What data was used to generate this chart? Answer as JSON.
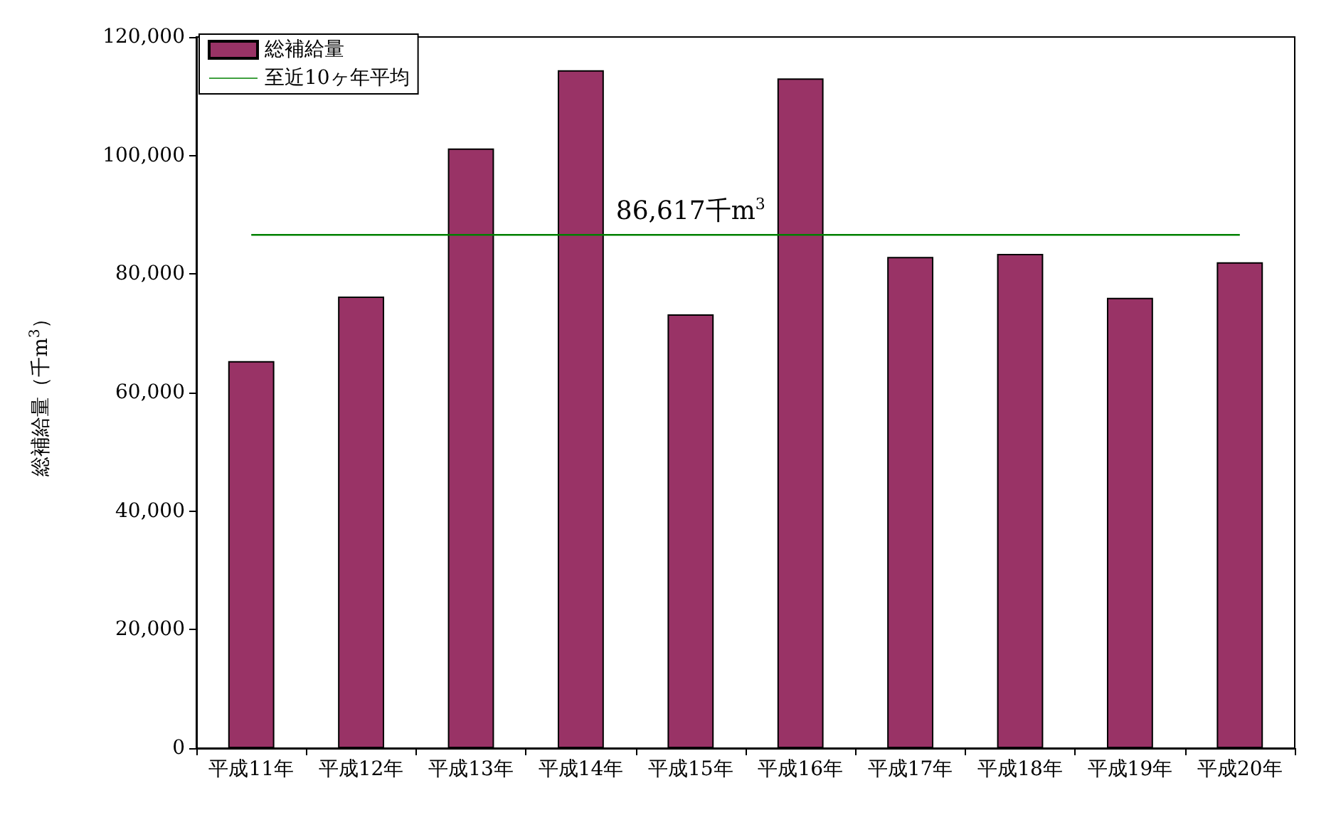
{
  "chart_data": {
    "type": "bar",
    "ylabel": "総補給量（千m$^{3}$）",
    "categories": [
      "平成11年",
      "平成12年",
      "平成13年",
      "平成14年",
      "平成15年",
      "平成16年",
      "平成17年",
      "平成18年",
      "平成19年",
      "平成20年"
    ],
    "series": [
      {
        "name": "総補給量",
        "color": "#993366",
        "values": [
          65300,
          76200,
          101200,
          114400,
          73200,
          113000,
          82900,
          83400,
          76000,
          82000
        ]
      },
      {
        "name": "至近10ヶ年平均",
        "type": "line",
        "color": "#008000",
        "values": [
          86617,
          86617,
          86617,
          86617,
          86617,
          86617,
          86617,
          86617,
          86617,
          86617
        ]
      }
    ],
    "annotations": [
      {
        "text": "86,617千m$^{3}$",
        "x": "平成15年",
        "y": 86617
      }
    ],
    "ylim": [
      0,
      120000
    ],
    "yticks": [
      0,
      {
        "value": 20000,
        "label": "20,000"
      },
      {
        "value": 40000,
        "label": "40,000"
      },
      {
        "value": 60000,
        "label": "60,000"
      },
      {
        "value": 80000,
        "label": "80,000"
      },
      {
        "value": 100000,
        "label": "100,000"
      },
      {
        "value": 120000,
        "label": "120,000"
      }
    ],
    "grid": false,
    "legend": "top left",
    "marker": "none",
    "line_style": "solid"
  }
}
